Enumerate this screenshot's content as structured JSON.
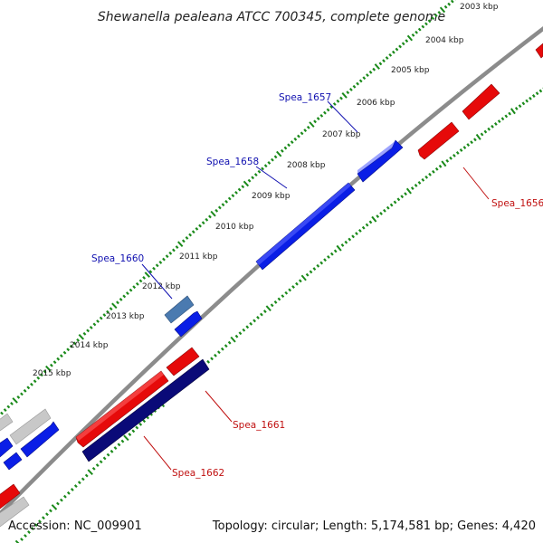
{
  "title": "Shewanella pealeana ATCC 700345, complete genome",
  "footer": {
    "accession": "Accession: NC_009901",
    "summary": "Topology: circular; Length: 5,174,581 bp; Genes: 4,420"
  },
  "ticks": [
    "2003 kbp",
    "2004 kbp",
    "2005 kbp",
    "2006 kbp",
    "2007 kbp",
    "2008 kbp",
    "2009 kbp",
    "2010 kbp",
    "2011 kbp",
    "2012 kbp",
    "2013 kbp",
    "2014 kbp",
    "2015 kbp"
  ],
  "gene_labels": {
    "spea_1656": "Spea_1656",
    "spea_1657": "Spea_1657",
    "spea_1658": "Spea_1658",
    "spea_1660": "Spea_1660",
    "spea_1661": "Spea_1661",
    "spea_1662": "Spea_1662"
  },
  "colors": {
    "forward_gene": "#0a1ee6",
    "reverse_gene": "#e60a0a",
    "dark_gene": "#0a0a78",
    "steel_gene": "#4a7ab0",
    "grey_gene": "#c0c0c0",
    "backbone": "#888888",
    "tick_marks": "#1a8a1a",
    "forward_label": "#1010b0",
    "reverse_label": "#c01010"
  }
}
